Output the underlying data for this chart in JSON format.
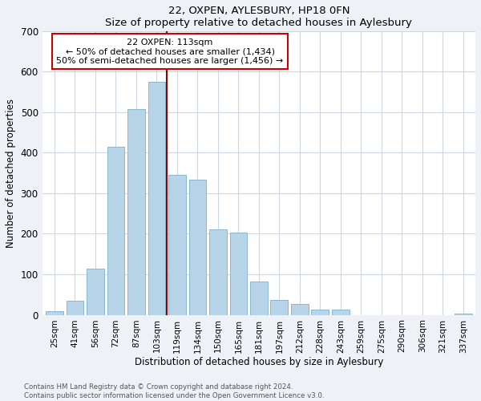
{
  "title": "22, OXPEN, AYLESBURY, HP18 0FN",
  "subtitle": "Size of property relative to detached houses in Aylesbury",
  "xlabel": "Distribution of detached houses by size in Aylesbury",
  "ylabel": "Number of detached properties",
  "bar_labels": [
    "25sqm",
    "41sqm",
    "56sqm",
    "72sqm",
    "87sqm",
    "103sqm",
    "119sqm",
    "134sqm",
    "150sqm",
    "165sqm",
    "181sqm",
    "197sqm",
    "212sqm",
    "228sqm",
    "243sqm",
    "259sqm",
    "275sqm",
    "290sqm",
    "306sqm",
    "321sqm",
    "337sqm"
  ],
  "bar_values": [
    8,
    35,
    113,
    415,
    508,
    575,
    345,
    333,
    210,
    202,
    83,
    37,
    26,
    13,
    13,
    0,
    0,
    0,
    0,
    0,
    3
  ],
  "bar_color": "#b8d4e8",
  "bar_edge_color": "#8ab8d0",
  "ylim": [
    0,
    700
  ],
  "yticks": [
    0,
    100,
    200,
    300,
    400,
    500,
    600,
    700
  ],
  "property_label": "22 OXPEN: 113sqm",
  "annotation_line1": "← 50% of detached houses are smaller (1,434)",
  "annotation_line2": "50% of semi-detached houses are larger (1,456) →",
  "vline_color": "#8b0000",
  "box_edge_color": "#cc0000",
  "footnote1": "Contains HM Land Registry data © Crown copyright and database right 2024.",
  "footnote2": "Contains public sector information licensed under the Open Government Licence v3.0.",
  "background_color": "#eef2f7",
  "plot_bg_color": "#ffffff",
  "grid_color": "#ccd8e4"
}
